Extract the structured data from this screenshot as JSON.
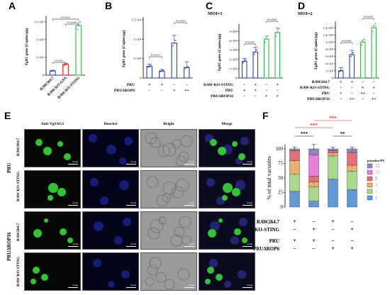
{
  "panels": {
    "A": {
      "letter": "A",
      "ylabel_gene": "TgB1",
      "ylabel_rest": " gene (Copies/μg)",
      "yticks": [
        "0",
        "5×10⁴",
        "1×10⁵",
        "1.5×10⁵"
      ],
      "categories": [
        "RAW264.7",
        "RAW-KO-GSA",
        "RAW-KO-STING"
      ],
      "sig": [
        {
          "text": "P<0.001",
          "from": 0,
          "to": 1
        },
        {
          "text": "P<0.0001",
          "from": 1,
          "to": 2
        },
        {
          "text": "P<0.0001",
          "from": 0,
          "to": 2
        }
      ]
    },
    "B": {
      "letter": "B",
      "ylabel_gene": "TgB1",
      "ylabel_rest": " gene (Copies/μg)",
      "yticks": [
        "0",
        "5×10²",
        "1×10³",
        "1.5×10³"
      ],
      "rows": [
        {
          "label": "PRU",
          "values": [
            "+",
            "+",
            "−",
            "−"
          ]
        },
        {
          "label": "PRUΔROP6",
          "values": [
            "−",
            "−",
            "+",
            "++"
          ]
        }
      ],
      "sig": [
        {
          "text": "P=0.0013",
          "from": 0,
          "to": 1
        },
        {
          "text": "P=0.0005",
          "from": 2,
          "to": 3
        }
      ]
    },
    "C": {
      "letter": "C",
      "moi": "MOI=1",
      "ylabel_gene": "TgB1",
      "ylabel_rest": " gene (Copies/μg)",
      "yticks": [
        "0",
        "1×10³",
        "2×10³",
        "3×10³",
        "4×10³",
        "5×10³"
      ],
      "rows": [
        {
          "label": "RAW-KO-STING",
          "values": [
            "−",
            "+",
            "−",
            "+"
          ]
        },
        {
          "label": "PRU",
          "values": [
            "+",
            "+",
            "−",
            "−"
          ]
        },
        {
          "label": "PRUΔROP16",
          "values": [
            "−",
            "−",
            "+",
            "+"
          ]
        }
      ],
      "sig": [
        {
          "text": "P=0.0016",
          "from": 0,
          "to": 1
        },
        {
          "text": "P=0.0050",
          "from": 2,
          "to": 3
        }
      ]
    },
    "D": {
      "letter": "D",
      "moi": "MOI=2",
      "ylabel_gene": "TgB1",
      "ylabel_rest": " gene (Copies/μg)",
      "yticks": [
        "0",
        "2×10³",
        "4×10³",
        "6×10³",
        "8×10³",
        "1×10⁴",
        "1.2×10⁴",
        "1.4×10⁴"
      ],
      "rows": [
        {
          "label": "RAW264.7",
          "values": [
            "+",
            "+",
            "−",
            "−"
          ]
        },
        {
          "label": "RAW-KO-STING",
          "values": [
            "−",
            "−",
            "+",
            "+"
          ]
        },
        {
          "label": "PRU",
          "values": [
            "+",
            "−",
            "++",
            "−"
          ]
        },
        {
          "label": "PRUΔROP16",
          "values": [
            "−",
            "++",
            "−",
            "++"
          ]
        }
      ],
      "sig": [
        {
          "text": "P=0.0006",
          "from": 0,
          "to": 1
        },
        {
          "text": "P=0.0007",
          "from": 2,
          "to": 3
        }
      ]
    },
    "E": {
      "letter": "E",
      "columns": [
        "Anti-TgSAG1",
        "Hoechst",
        "Bright",
        "Merge"
      ],
      "groups": [
        "PRU",
        "PRUΔROP16"
      ],
      "rows": [
        "RAW264.7",
        "RAW-KO-STING",
        "RAW264.7",
        "RAW-KO-STING"
      ],
      "scalebar": "20 μm"
    },
    "F": {
      "letter": "F",
      "ylabel": "% of total vacuoles",
      "yticks": [
        "0",
        "25",
        "50",
        "75",
        "100"
      ],
      "legend_title": "parasites/PV",
      "legend": [
        {
          "label": "32",
          "color": "#8f86c9"
        },
        {
          "label": "16",
          "color": "#e781d6"
        },
        {
          "label": "8",
          "color": "#e56f79"
        },
        {
          "label": "4",
          "color": "#f2ac6e"
        },
        {
          "label": "2",
          "color": "#a9d98a"
        },
        {
          "label": "1",
          "color": "#5f9ad6"
        }
      ],
      "rows": [
        {
          "label": "RAW264.7",
          "values": [
            "+",
            "−",
            "+",
            "−"
          ]
        },
        {
          "label": "RAW-KO-STING",
          "values": [
            "−",
            "+",
            "−",
            "+"
          ]
        },
        {
          "label": "PRU",
          "values": [
            "+",
            "+",
            "−",
            "−"
          ]
        },
        {
          "label": "PRUΔROP6",
          "values": [
            "−",
            "−",
            "+",
            "+"
          ]
        }
      ],
      "sig": [
        {
          "text": "***",
          "from": 0,
          "to": 1,
          "level": 0,
          "color": "#000000"
        },
        {
          "text": "**",
          "from": 2,
          "to": 3,
          "level": 0,
          "color": "#000000"
        },
        {
          "text": "***",
          "from": 0,
          "to": 2,
          "level": 1,
          "color": "#e0252b"
        },
        {
          "text": "***",
          "from": 1,
          "to": 3,
          "level": 2,
          "color": "#e0252b"
        }
      ]
    }
  },
  "chart_data": [
    {
      "type": "bar",
      "panel": "A",
      "categories": [
        "RAW264.7",
        "RAW-KO-GSA",
        "RAW-KO-STING"
      ],
      "values": [
        12000,
        30000,
        140000
      ],
      "errors": [
        2000,
        3000,
        8000
      ],
      "colors": [
        "#2b3fb8",
        "#e0252b",
        "#37b34a"
      ],
      "ylim": [
        0,
        160000
      ]
    },
    {
      "type": "bar",
      "panel": "B",
      "categories": [
        "1",
        "2",
        "3",
        "4"
      ],
      "values": [
        300,
        180,
        900,
        270
      ],
      "errors": [
        60,
        40,
        200,
        150
      ],
      "colors": [
        "#2b3fb8",
        "#2b3fb8",
        "#2b3fb8",
        "#2b3fb8"
      ],
      "ylim": [
        0,
        1500
      ]
    },
    {
      "type": "bar",
      "panel": "C",
      "categories": [
        "1",
        "2",
        "3",
        "4"
      ],
      "values": [
        1800,
        2800,
        4200,
        4900
      ],
      "errors": [
        300,
        500,
        300,
        500
      ],
      "colors": [
        "#2b3fb8",
        "#2b3fb8",
        "#37b34a",
        "#37b34a"
      ],
      "ylim": [
        0,
        5500
      ]
    },
    {
      "type": "bar",
      "panel": "D",
      "categories": [
        "1",
        "2",
        "3",
        "4"
      ],
      "values": [
        2000,
        6500,
        10000,
        14000
      ],
      "errors": [
        900,
        1200,
        500,
        600
      ],
      "colors": [
        "#2b3fb8",
        "#2b3fb8",
        "#37b34a",
        "#37b34a"
      ],
      "ylim": [
        0,
        15000
      ]
    },
    {
      "type": "bar",
      "panel": "F",
      "stacked": true,
      "categories": [
        "1",
        "2",
        "3",
        "4"
      ],
      "series": [
        {
          "name": "1",
          "values": [
            27,
            10,
            48,
            30
          ]
        },
        {
          "name": "2",
          "values": [
            30,
            25,
            40,
            32
          ]
        },
        {
          "name": "4",
          "values": [
            23,
            8,
            5,
            10
          ]
        },
        {
          "name": "8",
          "values": [
            17,
            10,
            4,
            22
          ]
        },
        {
          "name": "16",
          "values": [
            0,
            37,
            0,
            0
          ]
        },
        {
          "name": "32",
          "values": [
            3,
            10,
            3,
            6
          ]
        }
      ],
      "errors": [
        3,
        8,
        3,
        3
      ],
      "ylim": [
        0,
        100
      ]
    }
  ]
}
